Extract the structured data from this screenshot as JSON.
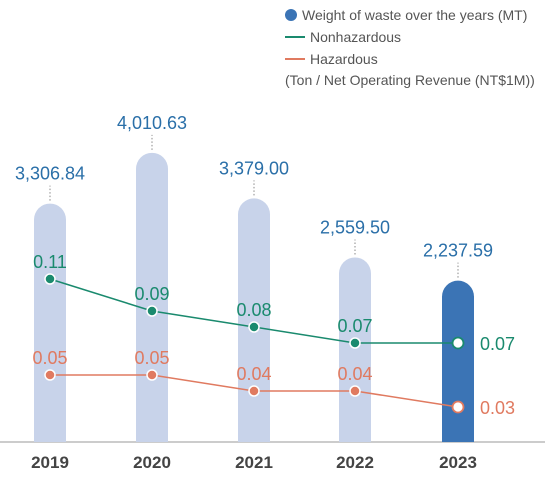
{
  "chart_data": {
    "type": "bar",
    "categories": [
      "2019",
      "2020",
      "2021",
      "2022",
      "2023"
    ],
    "values": [
      3306.84,
      4010.63,
      3379.0,
      2559.5,
      2237.59
    ],
    "value_labels": [
      "3,306.84",
      "4,010.63",
      "3,379.00",
      "2,559.50",
      "2,237.59"
    ],
    "bar_series_name": "Weight of waste over the years (MT)",
    "line_series": [
      {
        "name": "Nonhazardous",
        "values": [
          0.11,
          0.09,
          0.08,
          0.07,
          0.07
        ],
        "labels": [
          "0.11",
          "0.09",
          "0.08",
          "0.07",
          "0.07"
        ],
        "color": "#1a8a6e"
      },
      {
        "name": "Hazardous",
        "values": [
          0.05,
          0.05,
          0.04,
          0.04,
          0.03
        ],
        "labels": [
          "0.05",
          "0.05",
          "0.04",
          "0.04",
          "0.03"
        ],
        "color": "#e07a60"
      }
    ],
    "unit_note": "(Ton / Net Operating Revenue (NT$1M))",
    "colors": {
      "bar": "#c8d3ea",
      "highlight_bar": "#3b74b5",
      "value_label": "#2a6fa8",
      "axis_label": "#444444"
    },
    "highlight_index": 4,
    "legend_placement": "top-right",
    "grid": false
  }
}
